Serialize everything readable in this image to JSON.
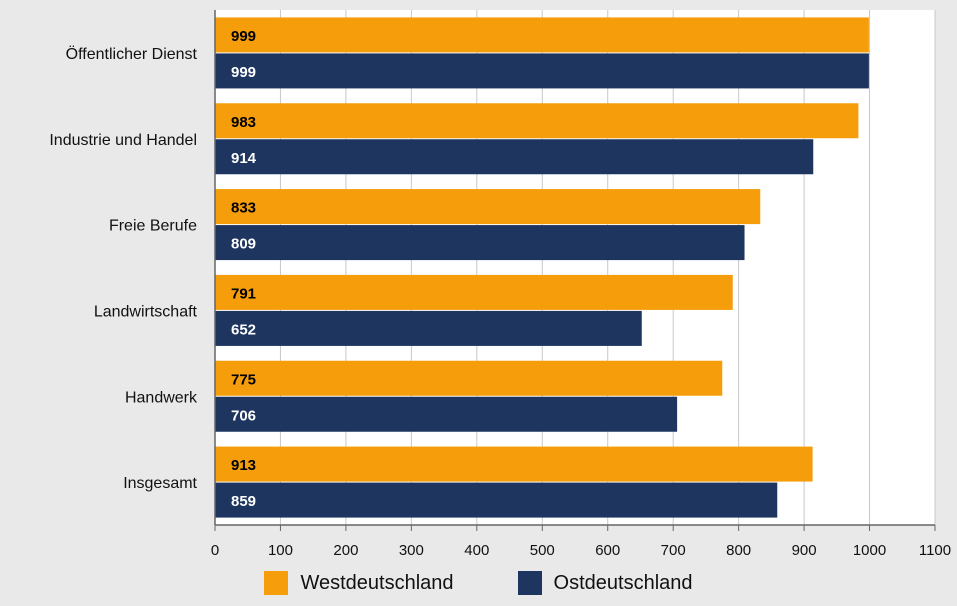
{
  "chart_data": {
    "type": "bar",
    "orientation": "horizontal",
    "categories": [
      "Öffentlicher Dienst",
      "Industrie und Handel",
      "Freie Berufe",
      "Landwirtschaft",
      "Handwerk",
      "Insgesamt"
    ],
    "series": [
      {
        "name": "Westdeutschland",
        "color": "#f59d0a",
        "label_color": "#000000",
        "values": [
          999,
          983,
          833,
          791,
          775,
          913
        ]
      },
      {
        "name": "Ostdeutschland",
        "color": "#1e3560",
        "label_color": "#ffffff",
        "values": [
          999,
          914,
          809,
          652,
          706,
          859
        ]
      }
    ],
    "xlim": [
      0,
      1100
    ],
    "xticks": [
      0,
      100,
      200,
      300,
      400,
      500,
      600,
      700,
      800,
      900,
      1000,
      1100
    ],
    "grid": "vertical",
    "legend_position": "bottom",
    "title": "",
    "xlabel": "",
    "ylabel": ""
  }
}
